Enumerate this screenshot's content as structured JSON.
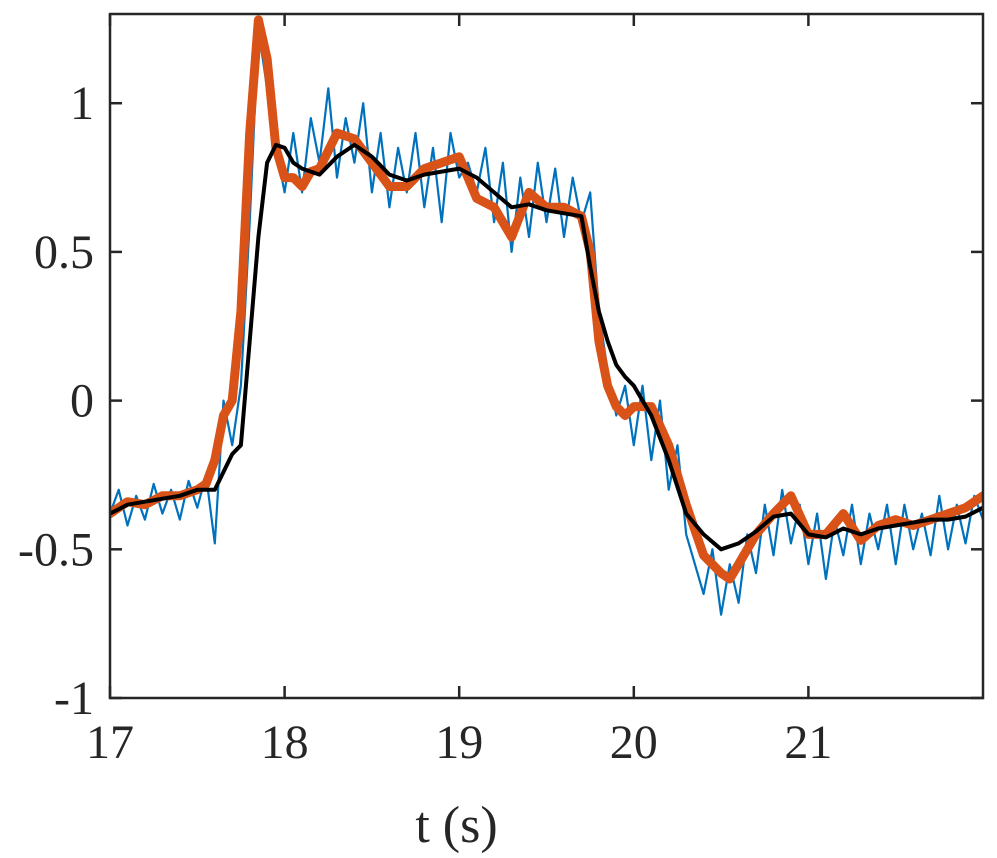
{
  "chart_data": {
    "type": "line",
    "title": "",
    "xlabel": "t (s)",
    "ylabel": "",
    "xlim": [
      17,
      22
    ],
    "ylim": [
      -1,
      1.3
    ],
    "grid": false,
    "legend": "none",
    "x_ticks": [
      17,
      18,
      19,
      20,
      21
    ],
    "x_tick_labels": [
      "17",
      "18",
      "19",
      "20",
      "21"
    ],
    "y_ticks": [
      -1,
      -0.5,
      0,
      0.5,
      1
    ],
    "y_tick_labels": [
      "-1",
      "-0.5",
      "0",
      "0.5",
      "1"
    ],
    "series": [
      {
        "color": "#0072BD",
        "line_width": "thin",
        "noisy": true,
        "x": [
          17.0,
          17.05,
          17.1,
          17.15,
          17.2,
          17.25,
          17.3,
          17.35,
          17.4,
          17.45,
          17.5,
          17.55,
          17.6,
          17.65,
          17.7,
          17.75,
          17.8,
          17.85,
          17.9,
          17.95,
          18.0,
          18.05,
          18.1,
          18.15,
          18.2,
          18.25,
          18.3,
          18.35,
          18.4,
          18.45,
          18.5,
          18.55,
          18.6,
          18.65,
          18.7,
          18.75,
          18.8,
          18.85,
          18.9,
          18.95,
          19.0,
          19.05,
          19.1,
          19.15,
          19.2,
          19.25,
          19.3,
          19.35,
          19.4,
          19.45,
          19.5,
          19.55,
          19.6,
          19.65,
          19.7,
          19.75,
          19.8,
          19.85,
          19.9,
          19.95,
          20.0,
          20.05,
          20.1,
          20.15,
          20.2,
          20.25,
          20.3,
          20.35,
          20.4,
          20.45,
          20.5,
          20.55,
          20.6,
          20.65,
          20.7,
          20.75,
          20.8,
          20.85,
          20.9,
          20.95,
          21.0,
          21.05,
          21.1,
          21.15,
          21.2,
          21.25,
          21.3,
          21.35,
          21.4,
          21.45,
          21.5,
          21.55,
          21.6,
          21.65,
          21.7,
          21.75,
          21.8,
          21.85,
          21.9,
          21.95,
          22.0
        ],
        "y": [
          -0.38,
          -0.3,
          -0.42,
          -0.32,
          -0.4,
          -0.28,
          -0.38,
          -0.3,
          -0.4,
          -0.27,
          -0.36,
          -0.25,
          -0.48,
          0.0,
          -0.15,
          0.05,
          0.6,
          1.25,
          1.05,
          0.85,
          0.7,
          0.9,
          0.7,
          0.95,
          0.8,
          1.05,
          0.75,
          0.95,
          0.8,
          1.0,
          0.7,
          0.9,
          0.65,
          0.85,
          0.7,
          0.9,
          0.65,
          0.85,
          0.6,
          0.9,
          0.75,
          0.8,
          0.7,
          0.85,
          0.6,
          0.8,
          0.5,
          0.75,
          0.55,
          0.8,
          0.6,
          0.78,
          0.55,
          0.75,
          0.6,
          0.7,
          0.3,
          0.1,
          -0.05,
          0.05,
          -0.15,
          0.05,
          -0.2,
          0.0,
          -0.3,
          -0.15,
          -0.45,
          -0.55,
          -0.65,
          -0.5,
          -0.72,
          -0.55,
          -0.68,
          -0.45,
          -0.58,
          -0.35,
          -0.52,
          -0.3,
          -0.48,
          -0.35,
          -0.55,
          -0.38,
          -0.6,
          -0.4,
          -0.52,
          -0.35,
          -0.55,
          -0.38,
          -0.5,
          -0.35,
          -0.55,
          -0.35,
          -0.5,
          -0.38,
          -0.52,
          -0.32,
          -0.5,
          -0.35,
          -0.48,
          -0.32,
          -0.4
        ]
      },
      {
        "color": "#D95319",
        "line_width": "thick",
        "x": [
          17.0,
          17.1,
          17.2,
          17.3,
          17.4,
          17.5,
          17.55,
          17.6,
          17.65,
          17.7,
          17.75,
          17.8,
          17.85,
          17.9,
          17.95,
          18.0,
          18.05,
          18.1,
          18.15,
          18.2,
          18.3,
          18.4,
          18.5,
          18.6,
          18.7,
          18.8,
          18.9,
          19.0,
          19.1,
          19.2,
          19.3,
          19.4,
          19.5,
          19.6,
          19.7,
          19.75,
          19.8,
          19.85,
          19.9,
          19.95,
          20.0,
          20.1,
          20.2,
          20.3,
          20.4,
          20.5,
          20.55,
          20.6,
          20.7,
          20.8,
          20.9,
          21.0,
          21.1,
          21.2,
          21.3,
          21.4,
          21.5,
          21.6,
          21.7,
          21.8,
          21.9,
          22.0
        ],
        "y": [
          -0.38,
          -0.34,
          -0.35,
          -0.32,
          -0.32,
          -0.3,
          -0.28,
          -0.2,
          -0.05,
          0.0,
          0.3,
          0.9,
          1.28,
          1.15,
          0.85,
          0.75,
          0.75,
          0.72,
          0.77,
          0.78,
          0.9,
          0.88,
          0.8,
          0.72,
          0.72,
          0.78,
          0.8,
          0.82,
          0.68,
          0.65,
          0.55,
          0.7,
          0.65,
          0.65,
          0.62,
          0.5,
          0.2,
          0.05,
          -0.02,
          -0.05,
          -0.02,
          -0.02,
          -0.15,
          -0.35,
          -0.52,
          -0.58,
          -0.6,
          -0.55,
          -0.45,
          -0.38,
          -0.32,
          -0.45,
          -0.45,
          -0.38,
          -0.47,
          -0.42,
          -0.4,
          -0.42,
          -0.4,
          -0.38,
          -0.36,
          -0.32
        ]
      },
      {
        "color": "#000000",
        "line_width": "medium",
        "x": [
          17.0,
          17.1,
          17.2,
          17.3,
          17.4,
          17.5,
          17.6,
          17.7,
          17.75,
          17.8,
          17.85,
          17.9,
          17.95,
          18.0,
          18.05,
          18.1,
          18.2,
          18.3,
          18.4,
          18.5,
          18.6,
          18.7,
          18.8,
          18.9,
          19.0,
          19.1,
          19.2,
          19.3,
          19.4,
          19.5,
          19.6,
          19.7,
          19.75,
          19.8,
          19.85,
          19.9,
          19.95,
          20.0,
          20.1,
          20.2,
          20.3,
          20.4,
          20.5,
          20.6,
          20.7,
          20.8,
          20.9,
          21.0,
          21.1,
          21.2,
          21.3,
          21.4,
          21.5,
          21.6,
          21.7,
          21.8,
          21.9,
          22.0
        ],
        "y": [
          -0.38,
          -0.35,
          -0.34,
          -0.33,
          -0.32,
          -0.3,
          -0.3,
          -0.18,
          -0.15,
          0.2,
          0.55,
          0.8,
          0.86,
          0.85,
          0.8,
          0.78,
          0.76,
          0.82,
          0.86,
          0.82,
          0.76,
          0.74,
          0.76,
          0.77,
          0.78,
          0.75,
          0.7,
          0.65,
          0.66,
          0.64,
          0.63,
          0.62,
          0.45,
          0.3,
          0.2,
          0.12,
          0.08,
          0.05,
          -0.05,
          -0.2,
          -0.38,
          -0.45,
          -0.5,
          -0.48,
          -0.44,
          -0.39,
          -0.38,
          -0.45,
          -0.46,
          -0.43,
          -0.45,
          -0.43,
          -0.42,
          -0.41,
          -0.4,
          -0.4,
          -0.39,
          -0.36
        ]
      }
    ]
  }
}
